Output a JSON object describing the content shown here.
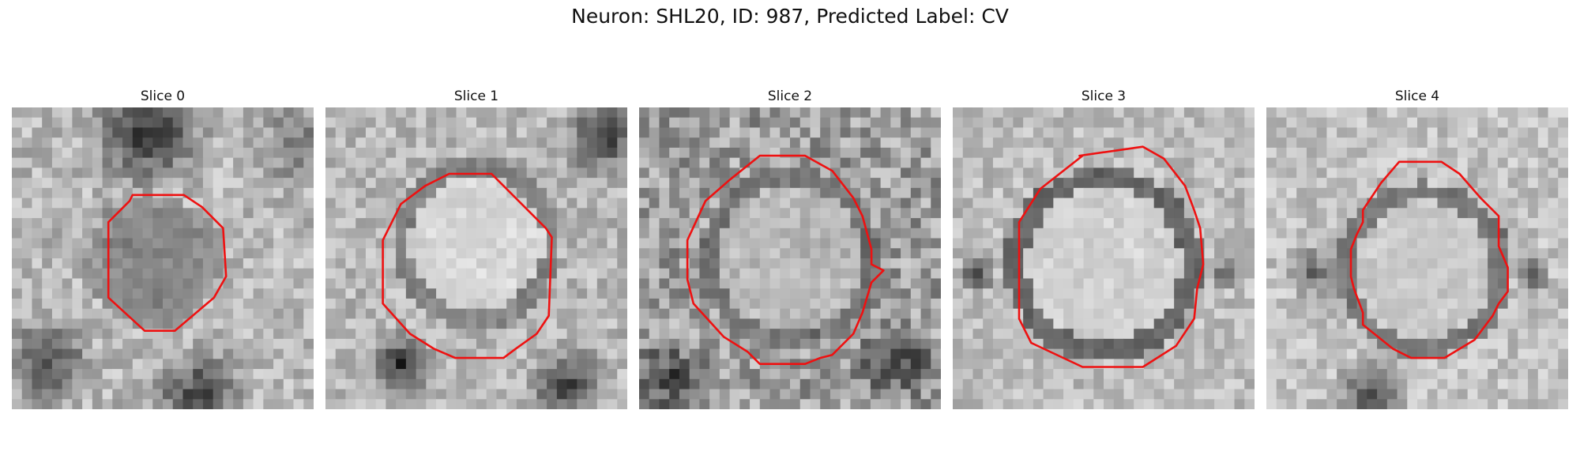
{
  "figure": {
    "title": "Neuron: SHL20, ID: 987, Predicted Label: CV"
  },
  "colors": {
    "contour": "#ee1111"
  },
  "panels": [
    {
      "title": "Slice 0",
      "contour_color": "#ee1111"
    },
    {
      "title": "Slice 1",
      "contour_color": "#ee1111"
    },
    {
      "title": "Slice 2",
      "contour_color": "#ee1111"
    },
    {
      "title": "Slice 3",
      "contour_color": "#ee1111"
    },
    {
      "title": "Slice 4",
      "contour_color": "#ee1111"
    }
  ]
}
